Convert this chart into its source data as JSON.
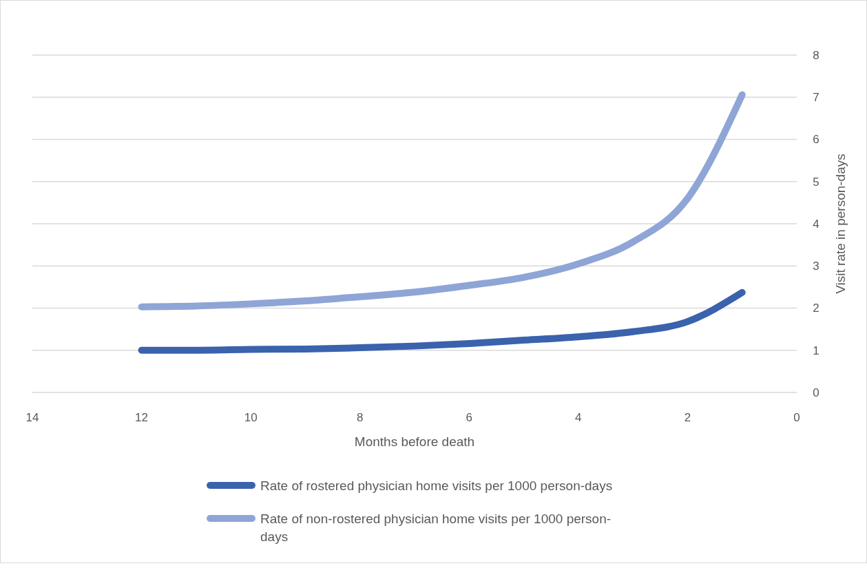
{
  "chart_data": {
    "type": "line",
    "xlabel": "Months before death",
    "ylabel": "Visit rate in person-days",
    "x": [
      12,
      11,
      10,
      9,
      8,
      7,
      6,
      5,
      4,
      3,
      2,
      1
    ],
    "series": [
      {
        "name": "Rate of rostered physician home visits per 1000 person-days",
        "color": "#3a62ad",
        "values": [
          1.0,
          1.0,
          1.02,
          1.03,
          1.06,
          1.1,
          1.16,
          1.24,
          1.32,
          1.44,
          1.68,
          2.37
        ]
      },
      {
        "name": "Rate of non-rostered physician home visits per 1000 person-days",
        "color": "#8ea5d6",
        "values": [
          2.03,
          2.05,
          2.1,
          2.17,
          2.27,
          2.38,
          2.54,
          2.73,
          3.05,
          3.57,
          4.6,
          7.06
        ]
      }
    ],
    "xlim": [
      14,
      0
    ],
    "xticks": [
      14,
      12,
      10,
      8,
      6,
      4,
      2,
      0
    ],
    "ylim": [
      0,
      8
    ],
    "yticks": [
      0,
      1,
      2,
      3,
      4,
      5,
      6,
      7,
      8
    ],
    "grid": "y",
    "legend": "bottom",
    "marker": "none",
    "line_style": "solid"
  }
}
